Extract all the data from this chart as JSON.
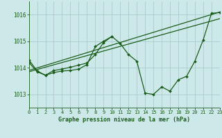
{
  "bg_color": "#cce8e8",
  "grid_color": "#aacccc",
  "line_color": "#1a5c1a",
  "title": "Graphe pression niveau de la mer (hPa)",
  "xlim": [
    0,
    23
  ],
  "ylim": [
    1012.5,
    1016.5
  ],
  "yticks": [
    1013,
    1014,
    1015,
    1016
  ],
  "xticks": [
    0,
    1,
    2,
    3,
    4,
    5,
    6,
    7,
    8,
    9,
    10,
    11,
    12,
    13,
    14,
    15,
    16,
    17,
    18,
    19,
    20,
    21,
    22,
    23
  ],
  "series": [
    {
      "x": [
        0,
        23
      ],
      "y": [
        1013.9,
        1016.1
      ],
      "marker": null,
      "lw": 0.9
    },
    {
      "x": [
        0,
        23
      ],
      "y": [
        1013.85,
        1015.85
      ],
      "marker": null,
      "lw": 0.9
    },
    {
      "x": [
        0,
        1,
        2,
        3,
        4,
        5,
        6,
        7,
        8,
        9,
        10,
        11,
        12,
        13,
        14,
        15,
        16,
        17,
        18,
        19,
        20,
        21,
        22,
        23
      ],
      "y": [
        1014.2,
        1013.85,
        1013.72,
        1013.82,
        1013.88,
        1013.9,
        1013.95,
        1014.12,
        1014.8,
        1015.0,
        1015.18,
        1014.92,
        1014.5,
        1014.25,
        1013.05,
        1013.0,
        1013.28,
        1013.12,
        1013.55,
        1013.68,
        1014.25,
        1015.05,
        1016.05,
        1016.08
      ],
      "marker": "D",
      "lw": 0.9
    },
    {
      "x": [
        0,
        1,
        2,
        3,
        4,
        5,
        6,
        7,
        8,
        9,
        10
      ],
      "y": [
        1014.3,
        1013.88,
        1013.72,
        1013.9,
        1013.95,
        1014.02,
        1014.1,
        1014.18,
        1014.5,
        1014.95,
        1015.18
      ],
      "marker": "D",
      "lw": 0.9
    }
  ]
}
